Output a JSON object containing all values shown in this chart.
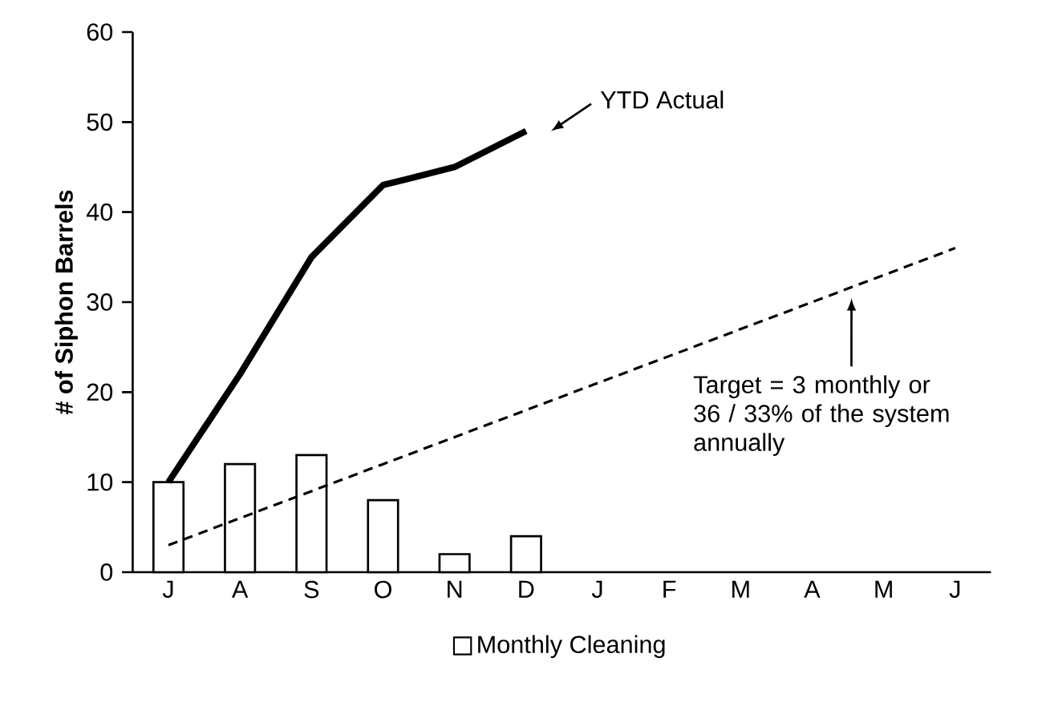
{
  "chart_data": {
    "type": "bar",
    "ylabel": "# of Siphon Barrels",
    "categories": [
      "J",
      "A",
      "S",
      "O",
      "N",
      "D",
      "J",
      "F",
      "M",
      "A",
      "M",
      "J"
    ],
    "series": [
      {
        "name": "Monthly Cleaning",
        "color": "#ffffff",
        "values": [
          10,
          12,
          13,
          8,
          2,
          4,
          null,
          null,
          null,
          null,
          null,
          null
        ]
      },
      {
        "type": "line",
        "color": "#000000",
        "values": [
          10,
          22,
          35,
          43,
          45,
          49,
          null,
          null,
          null,
          null,
          null,
          null
        ]
      },
      {
        "type": "line",
        "color": "#000000",
        "line_style": "dashed",
        "values": [
          3,
          6,
          9,
          12,
          15,
          18,
          21,
          24,
          27,
          30,
          33,
          36
        ]
      }
    ],
    "ylim": [
      0,
      60
    ],
    "yticks": [
      0,
      10,
      20,
      30,
      40,
      50,
      60
    ],
    "legend": "bottom",
    "annotations": [
      "YTD Actual",
      "Target = 3 monthly or 36 / 33% of the system annually"
    ]
  }
}
